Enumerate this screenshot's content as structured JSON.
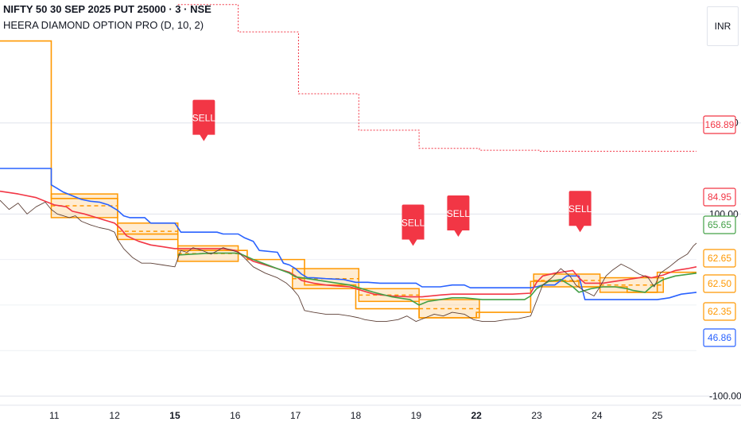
{
  "header": {
    "title": "NIFTY 50 30 SEP 2025 PUT 25000 · 3 · NSE",
    "indicator": "HEERA DIAMOND OPTION PRO (D, 10, 2)"
  },
  "price_scale": {
    "currency": "INR"
  },
  "signal_text": "SELL",
  "colors": {
    "red": "#f23645",
    "blue": "#2962ff",
    "orange": "#ff9800",
    "green": "#43a047",
    "price": "#5d4037",
    "grid": "#e0e3eb",
    "axis_text": "#131722"
  },
  "chart_data": {
    "type": "line",
    "x_ticks": [
      {
        "label": "11",
        "x": 0.9,
        "bold": false
      },
      {
        "label": "12",
        "x": 1.9,
        "bold": false
      },
      {
        "label": "15",
        "x": 2.9,
        "bold": true
      },
      {
        "label": "16",
        "x": 3.9,
        "bold": false
      },
      {
        "label": "17",
        "x": 4.9,
        "bold": false
      },
      {
        "label": "18",
        "x": 5.9,
        "bold": false
      },
      {
        "label": "19",
        "x": 6.9,
        "bold": false
      },
      {
        "label": "22",
        "x": 7.9,
        "bold": true
      },
      {
        "label": "23",
        "x": 8.9,
        "bold": false
      },
      {
        "label": "24",
        "x": 9.9,
        "bold": false
      },
      {
        "label": "25",
        "x": 10.9,
        "bold": false
      }
    ],
    "y_ticks": [
      {
        "label": "200.00",
        "value": 200
      },
      {
        "label": "100.00",
        "value": 100
      },
      {
        "label": "-100.00",
        "value": -100
      }
    ],
    "xlim": [
      0,
      11.55
    ],
    "ylim": [
      -110,
      335
    ],
    "series": [
      {
        "color_key": "blue",
        "points": [
          [
            0,
            150
          ],
          [
            0.85,
            150
          ],
          [
            0.85,
            132
          ],
          [
            0.95,
            128
          ],
          [
            1.05,
            124
          ],
          [
            1.2,
            120
          ],
          [
            1.35,
            116
          ],
          [
            1.5,
            114
          ],
          [
            1.65,
            113
          ],
          [
            1.8,
            110
          ],
          [
            1.95,
            104
          ],
          [
            2.05,
            98
          ],
          [
            2.15,
            96
          ],
          [
            2.4,
            96
          ],
          [
            2.5,
            90
          ],
          [
            2.9,
            90
          ],
          [
            3.0,
            80
          ],
          [
            3.6,
            80
          ],
          [
            3.7,
            78
          ],
          [
            3.95,
            78
          ],
          [
            4.05,
            74
          ],
          [
            4.2,
            70
          ],
          [
            4.3,
            60
          ],
          [
            4.6,
            58
          ],
          [
            4.7,
            46
          ],
          [
            4.8,
            44
          ],
          [
            4.9,
            40
          ],
          [
            5.0,
            34
          ],
          [
            5.1,
            30
          ],
          [
            5.2,
            30
          ],
          [
            5.4,
            29
          ],
          [
            5.7,
            28
          ],
          [
            5.9,
            25
          ],
          [
            6.1,
            25
          ],
          [
            6.3,
            24
          ],
          [
            6.5,
            24
          ],
          [
            6.9,
            24
          ],
          [
            7.0,
            20
          ],
          [
            7.3,
            20
          ],
          [
            7.5,
            22
          ],
          [
            7.7,
            22
          ],
          [
            7.8,
            19
          ],
          [
            8.2,
            19
          ],
          [
            8.5,
            19
          ],
          [
            8.8,
            19
          ],
          [
            8.9,
            20
          ],
          [
            9.0,
            22
          ],
          [
            9.2,
            22
          ],
          [
            9.4,
            32
          ],
          [
            9.6,
            32
          ],
          [
            9.7,
            6
          ],
          [
            10.2,
            6
          ],
          [
            10.9,
            6
          ],
          [
            11.1,
            8
          ],
          [
            11.3,
            12
          ],
          [
            11.55,
            14
          ]
        ]
      },
      {
        "color_key": "red",
        "points": [
          [
            0,
            125
          ],
          [
            0.3,
            122
          ],
          [
            0.6,
            118
          ],
          [
            0.9,
            110
          ],
          [
            1.1,
            108
          ],
          [
            1.2,
            103
          ],
          [
            1.4,
            100
          ],
          [
            1.6,
            96
          ],
          [
            1.8,
            92
          ],
          [
            1.9,
            90
          ],
          [
            2.0,
            84
          ],
          [
            2.1,
            76
          ],
          [
            2.3,
            70
          ],
          [
            2.5,
            66
          ],
          [
            2.7,
            64
          ],
          [
            2.9,
            62
          ],
          [
            3.3,
            62
          ],
          [
            3.7,
            62
          ],
          [
            3.9,
            60
          ],
          [
            4.0,
            56
          ],
          [
            4.2,
            48
          ],
          [
            4.4,
            44
          ],
          [
            4.6,
            40
          ],
          [
            4.8,
            36
          ],
          [
            4.9,
            32
          ],
          [
            5.0,
            27
          ],
          [
            5.2,
            24
          ],
          [
            5.4,
            22
          ],
          [
            5.6,
            21
          ],
          [
            5.8,
            20
          ],
          [
            6.0,
            16
          ],
          [
            6.2,
            12
          ],
          [
            6.5,
            10
          ],
          [
            6.8,
            9
          ],
          [
            7.0,
            9
          ],
          [
            7.3,
            11
          ],
          [
            7.5,
            12
          ],
          [
            7.7,
            12
          ],
          [
            8.0,
            12
          ],
          [
            8.5,
            12
          ],
          [
            8.8,
            13
          ],
          [
            8.9,
            25
          ],
          [
            9.0,
            32
          ],
          [
            9.2,
            35
          ],
          [
            9.5,
            38
          ],
          [
            9.6,
            30
          ],
          [
            9.7,
            24
          ],
          [
            10.0,
            24
          ],
          [
            10.2,
            26
          ],
          [
            10.4,
            28
          ],
          [
            10.6,
            30
          ],
          [
            10.7,
            32
          ],
          [
            10.8,
            30
          ],
          [
            11.0,
            33
          ],
          [
            11.2,
            38
          ],
          [
            11.4,
            40
          ],
          [
            11.55,
            42
          ]
        ]
      },
      {
        "color_key": "green",
        "points": [
          [
            2.95,
            55
          ],
          [
            3.2,
            56
          ],
          [
            3.5,
            57
          ],
          [
            3.9,
            57
          ],
          [
            4.0,
            56
          ],
          [
            4.2,
            50
          ],
          [
            4.4,
            45
          ],
          [
            4.6,
            40
          ],
          [
            4.8,
            35
          ],
          [
            4.9,
            31
          ],
          [
            5.2,
            28
          ],
          [
            5.5,
            25
          ],
          [
            5.8,
            22
          ],
          [
            6.0,
            18
          ],
          [
            6.2,
            14
          ],
          [
            6.5,
            9
          ],
          [
            6.8,
            6
          ],
          [
            6.95,
            0
          ],
          [
            7.1,
            4
          ],
          [
            7.3,
            6
          ],
          [
            7.5,
            8
          ],
          [
            7.7,
            8
          ],
          [
            8.0,
            6
          ],
          [
            8.5,
            6
          ],
          [
            8.7,
            6
          ],
          [
            8.8,
            10
          ],
          [
            8.9,
            18
          ],
          [
            9.1,
            26
          ],
          [
            9.3,
            28
          ],
          [
            9.5,
            20
          ],
          [
            9.6,
            14
          ],
          [
            9.8,
            18
          ],
          [
            10.0,
            20
          ],
          [
            10.2,
            20
          ],
          [
            10.4,
            18
          ],
          [
            10.5,
            16
          ],
          [
            10.7,
            14
          ],
          [
            10.8,
            20
          ],
          [
            11.0,
            28
          ],
          [
            11.2,
            32
          ],
          [
            11.55,
            35
          ]
        ]
      },
      {
        "color_key": "price",
        "points": [
          [
            0,
            115
          ],
          [
            0.15,
            105
          ],
          [
            0.3,
            112
          ],
          [
            0.45,
            100
          ],
          [
            0.6,
            108
          ],
          [
            0.75,
            113
          ],
          [
            0.85,
            105
          ],
          [
            0.95,
            100
          ],
          [
            1.05,
            98
          ],
          [
            1.15,
            96
          ],
          [
            1.25,
            98
          ],
          [
            1.35,
            92
          ],
          [
            1.5,
            88
          ],
          [
            1.65,
            85
          ],
          [
            1.8,
            83
          ],
          [
            1.9,
            80
          ],
          [
            1.95,
            72
          ],
          [
            2.05,
            62
          ],
          [
            2.2,
            52
          ],
          [
            2.35,
            46
          ],
          [
            2.5,
            46
          ],
          [
            2.7,
            44
          ],
          [
            2.9,
            42
          ],
          [
            3.0,
            60
          ],
          [
            3.1,
            58
          ],
          [
            3.2,
            63
          ],
          [
            3.35,
            60
          ],
          [
            3.5,
            56
          ],
          [
            3.7,
            63
          ],
          [
            3.85,
            60
          ],
          [
            3.95,
            58
          ],
          [
            4.05,
            52
          ],
          [
            4.2,
            42
          ],
          [
            4.4,
            35
          ],
          [
            4.6,
            30
          ],
          [
            4.75,
            24
          ],
          [
            4.85,
            18
          ],
          [
            4.95,
            10
          ],
          [
            5.05,
            -6
          ],
          [
            5.2,
            -8
          ],
          [
            5.4,
            -10
          ],
          [
            5.6,
            -10
          ],
          [
            5.8,
            -12
          ],
          [
            5.95,
            -14
          ],
          [
            6.05,
            -16
          ],
          [
            6.25,
            -18
          ],
          [
            6.4,
            -18
          ],
          [
            6.6,
            -16
          ],
          [
            6.75,
            -12
          ],
          [
            6.9,
            -18
          ],
          [
            7.05,
            -14
          ],
          [
            7.2,
            -10
          ],
          [
            7.35,
            -12
          ],
          [
            7.5,
            -8
          ],
          [
            7.7,
            -10
          ],
          [
            7.85,
            -16
          ],
          [
            8.0,
            -18
          ],
          [
            8.2,
            -18
          ],
          [
            8.4,
            -16
          ],
          [
            8.6,
            -15
          ],
          [
            8.8,
            -12
          ],
          [
            8.9,
            5
          ],
          [
            9.0,
            22
          ],
          [
            9.15,
            30
          ],
          [
            9.3,
            40
          ],
          [
            9.45,
            32
          ],
          [
            9.55,
            22
          ],
          [
            9.7,
            15
          ],
          [
            9.85,
            10
          ],
          [
            9.95,
            20
          ],
          [
            10.05,
            32
          ],
          [
            10.15,
            38
          ],
          [
            10.3,
            45
          ],
          [
            10.45,
            40
          ],
          [
            10.6,
            34
          ],
          [
            10.75,
            30
          ],
          [
            10.85,
            20
          ],
          [
            10.95,
            35
          ],
          [
            11.1,
            42
          ],
          [
            11.25,
            50
          ],
          [
            11.4,
            56
          ],
          [
            11.5,
            65
          ],
          [
            11.55,
            68
          ]
        ]
      }
    ],
    "orange_steps": [
      [
        0,
        0.85,
        290
      ],
      [
        0.85,
        1.95,
        117
      ],
      [
        1.95,
        2.95,
        78
      ],
      [
        2.95,
        4.1,
        60
      ],
      [
        4.1,
        5.05,
        50
      ],
      [
        5.05,
        5.9,
        22
      ],
      [
        5.9,
        6.95,
        -4
      ],
      [
        6.95,
        7.9,
        -14
      ],
      [
        7.9,
        8.8,
        -8
      ],
      [
        8.8,
        9.6,
        26
      ],
      [
        9.6,
        10.4,
        20
      ],
      [
        10.4,
        10.9,
        14
      ],
      [
        10.9,
        11.55,
        36
      ]
    ],
    "zones": [
      {
        "x1": 0.85,
        "x2": 1.95,
        "top": 122,
        "bottom": 96
      },
      {
        "x1": 1.95,
        "x2": 2.95,
        "top": 90,
        "bottom": 72
      },
      {
        "x1": 2.95,
        "x2": 3.95,
        "top": 65,
        "bottom": 48
      },
      {
        "x1": 4.85,
        "x2": 5.95,
        "top": 40,
        "bottom": 18
      },
      {
        "x1": 5.95,
        "x2": 6.95,
        "top": 18,
        "bottom": 4
      },
      {
        "x1": 6.95,
        "x2": 7.95,
        "top": 6,
        "bottom": -14
      },
      {
        "x1": 8.85,
        "x2": 9.95,
        "top": 34,
        "bottom": 20
      },
      {
        "x1": 9.95,
        "x2": 11.0,
        "top": 30,
        "bottom": 14
      }
    ],
    "red_dotted_steps": [
      [
        2.95,
        330
      ],
      [
        3.95,
        300
      ],
      [
        4.95,
        232
      ],
      [
        5.95,
        192
      ],
      [
        6.95,
        172
      ],
      [
        7.95,
        170
      ],
      [
        8.95,
        168.89
      ],
      [
        11.55,
        168.89
      ]
    ],
    "signals": [
      {
        "x": 3.38,
        "tip": 180
      },
      {
        "x": 6.85,
        "tip": 65
      },
      {
        "x": 7.6,
        "tip": 75
      },
      {
        "x": 9.62,
        "tip": 80
      }
    ],
    "price_labels": [
      {
        "text": "168.89",
        "value": 168.89,
        "color_key": "red"
      },
      {
        "text": "84.95",
        "value": 84.95,
        "color_key": "red"
      },
      {
        "text": "65.65",
        "value": 65.65,
        "color_key": "green"
      },
      {
        "text": "62.65",
        "value": 62.65,
        "color_key": "orange"
      },
      {
        "text": "62.50",
        "value": 62.5,
        "color_key": "orange"
      },
      {
        "text": "62.35",
        "value": 62.35,
        "color_key": "orange"
      },
      {
        "text": "46.86",
        "value": 46.86,
        "color_key": "blue"
      }
    ]
  }
}
